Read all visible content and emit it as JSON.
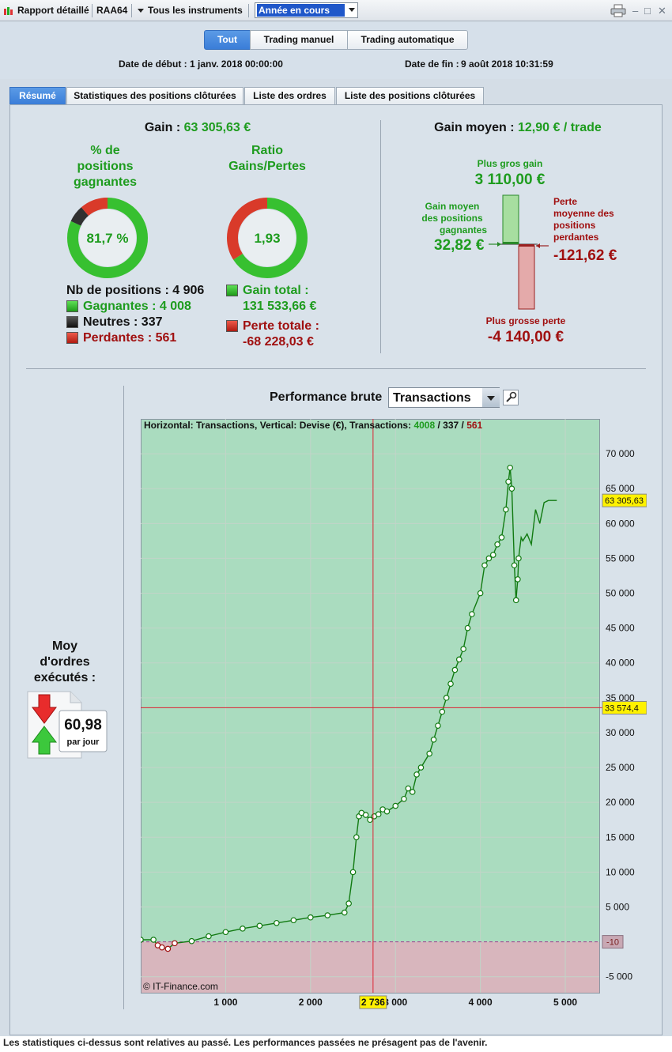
{
  "titlebar": {
    "report_label": "Rapport détaillé",
    "account": "RAA64",
    "instruments": "Tous les instruments",
    "period": "Année en cours"
  },
  "filters": {
    "all": "Tout",
    "manual": "Trading manuel",
    "auto": "Trading automatique"
  },
  "dates": {
    "start_label": "Date de début :",
    "start_value": "1 janv. 2018 00:00:00",
    "end_label": "Date de fin :",
    "end_value": "9 août 2018 10:31:59"
  },
  "tabs": [
    "Résumé",
    "Statistiques des positions clôturées",
    "Liste des ordres",
    "Liste des positions clôturées"
  ],
  "summary": {
    "gain_label": "Gain :",
    "gain_value": "63 305,63 €",
    "pct_title_1": "% de",
    "pct_title_2": "positions",
    "pct_title_3": "gagnantes",
    "pct_value": "81,7 %",
    "ratio_title_1": "Ratio",
    "ratio_title_2": "Gains/Pertes",
    "ratio_value": "1,93",
    "nb_label": "Nb de positions : 4 906",
    "winners": "Gagnantes : 4 008",
    "neutral": "Neutres : 337",
    "losers": "Perdantes : 561",
    "gain_total_label": "Gain total :",
    "gain_total_value": "131 533,66 €",
    "loss_total_label": "Perte totale :",
    "loss_total_value": "-68 228,03 €",
    "avg_gain_label": "Gain moyen :",
    "avg_gain_value": "12,90 € / trade",
    "biggest_gain_label": "Plus gros gain",
    "biggest_gain_value": "3 110,00 €",
    "avg_win_label_1": "Gain moyen",
    "avg_win_label_2": "des positions",
    "avg_win_label_3": "gagnantes",
    "avg_win_value": "32,82 €",
    "avg_loss_label_1": "Perte",
    "avg_loss_label_2": "moyenne des",
    "avg_loss_label_3": "positions",
    "avg_loss_label_4": "perdantes",
    "avg_loss_value": "-121,62 €",
    "biggest_loss_label": "Plus grosse perte",
    "biggest_loss_value": "-4 140,00 €",
    "winners_fraction": 0.817,
    "neutral_fraction": 0.0687,
    "losers_fraction": 0.1143,
    "gain_share_fraction": 0.658
  },
  "orders": {
    "title_1": "Moy",
    "title_2": "d'ordres",
    "title_3": "exécutés :",
    "value": "60,98",
    "unit": "par jour"
  },
  "performance": {
    "label": "Performance brute",
    "mode": "Transactions"
  },
  "chart_data": {
    "type": "line",
    "info_prefix": "Horizontal: Transactions, Vertical: Devise (€), Transactions: ",
    "info_win": "4008",
    "info_sep1": " / ",
    "info_neutral": "337",
    "info_sep2": " / ",
    "info_loss": "561",
    "copyright": "© IT-Finance.com",
    "x_ticks": [
      "1 000",
      "2 000",
      "3 000",
      "4 000",
      "5 000"
    ],
    "x_tick_values": [
      1000,
      2000,
      3000,
      4000,
      5000
    ],
    "y_ticks": [
      "70 000",
      "65 000",
      "60 000",
      "55 000",
      "50 000",
      "45 000",
      "40 000",
      "35 000",
      "30 000",
      "25 000",
      "20 000",
      "15 000",
      "10 000",
      "5 000",
      "-5 000"
    ],
    "y_tick_values": [
      70000,
      65000,
      60000,
      55000,
      50000,
      45000,
      40000,
      35000,
      30000,
      25000,
      20000,
      15000,
      10000,
      5000,
      -5000
    ],
    "xlim": [
      0,
      5400
    ],
    "ylim": [
      -7300,
      75000
    ],
    "zero_label": "-10",
    "last_value_label": "63 305,63",
    "last_value": 63305.63,
    "crosshair_x_label": "2 736",
    "crosshair_x": 2736,
    "crosshair_y_label": "33 574,4",
    "crosshair_y": 33574.4,
    "x": [
      0,
      150,
      200,
      250,
      320,
      400,
      600,
      800,
      1000,
      1200,
      1400,
      1600,
      1800,
      2000,
      2200,
      2400,
      2450,
      2500,
      2540,
      2570,
      2600,
      2650,
      2700,
      2750,
      2800,
      2850,
      2900,
      3000,
      3100,
      3150,
      3200,
      3250,
      3300,
      3400,
      3450,
      3500,
      3550,
      3600,
      3650,
      3700,
      3750,
      3800,
      3850,
      3900,
      4000,
      4050,
      4100,
      4150,
      4200,
      4250,
      4300,
      4330,
      4350,
      4370,
      4400,
      4420,
      4440,
      4450,
      4460,
      4470,
      4480,
      4500,
      4550,
      4600,
      4650,
      4700,
      4750,
      4800,
      4850,
      4900
    ],
    "y": [
      300,
      300,
      -500,
      -800,
      -1000,
      -200,
      100,
      800,
      1400,
      1900,
      2300,
      2700,
      3100,
      3500,
      3800,
      4200,
      5500,
      10000,
      15000,
      18000,
      18500,
      18200,
      17500,
      18000,
      18300,
      19000,
      18700,
      19500,
      20500,
      22000,
      21500,
      24000,
      25000,
      27000,
      29000,
      31000,
      33000,
      35000,
      37000,
      39000,
      40500,
      42000,
      45000,
      47000,
      50000,
      54000,
      55000,
      55500,
      57000,
      58000,
      62000,
      66000,
      68000,
      65000,
      54000,
      49000,
      52000,
      55000,
      56000,
      57000,
      58000,
      57500,
      58500,
      57000,
      62000,
      60000,
      63000,
      63300,
      63305,
      63305
    ]
  },
  "footer": {
    "note": "Les statistiques ci-dessus sont relatives au passé. Les performances passées ne présagent pas de l'avenir."
  }
}
